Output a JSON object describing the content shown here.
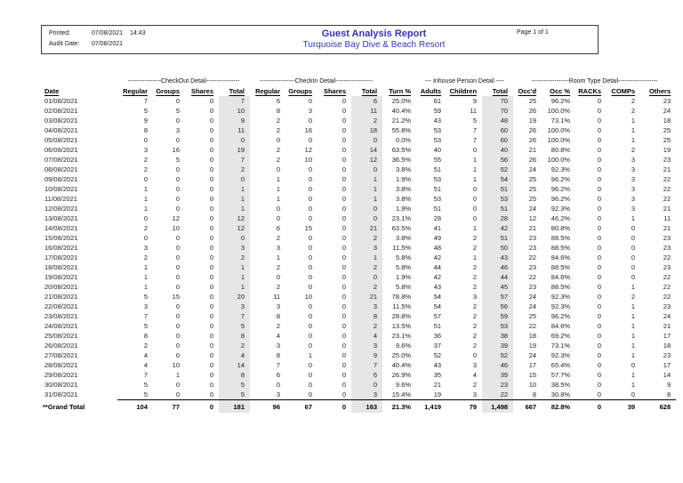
{
  "header": {
    "printed_label": "Printed:",
    "printed_date": "07/08/2021",
    "printed_time": "14:43",
    "audit_label": "Audit Date:",
    "audit_date": "07/08/2021",
    "title": "Guest Analysis Report",
    "subtitle": "Turquoise Bay Dive & Beach Resort",
    "page_info": "Page 1 of 1"
  },
  "colors": {
    "title_blue": "#3434b4",
    "total_column_bg": "#e6e6e6"
  },
  "table": {
    "group_headers": {
      "checkout": "----------------CheckOut Detail----------------",
      "checkin": "-----------------CheckIn Detail------------------",
      "inhouse": "--- Inhouse Person Detail ----",
      "roomtype": "------------------Room Type Detail-------------------"
    },
    "columns": [
      "Date",
      "Regular",
      "Groups",
      "Shares",
      "Total",
      "Regular",
      "Groups",
      "Shares",
      "Total",
      "Turn %",
      "Adults",
      "Children",
      "Total",
      "Occ'd",
      "Occ %",
      "RACKs",
      "COMPs",
      "Others"
    ],
    "total_column_indexes": [
      4,
      8,
      12
    ],
    "rows": [
      [
        "01/08/2021",
        "7",
        "0",
        "0",
        "7",
        "6",
        "0",
        "0",
        "6",
        "25.0%",
        "61",
        "9",
        "70",
        "25",
        "96.2%",
        "0",
        "2",
        "23"
      ],
      [
        "02/08/2021",
        "5",
        "5",
        "0",
        "10",
        "8",
        "3",
        "0",
        "11",
        "40.4%",
        "59",
        "11",
        "70",
        "26",
        "100.0%",
        "0",
        "2",
        "24"
      ],
      [
        "03/08/2021",
        "9",
        "0",
        "0",
        "9",
        "2",
        "0",
        "0",
        "2",
        "21.2%",
        "43",
        "5",
        "48",
        "19",
        "73.1%",
        "0",
        "1",
        "18"
      ],
      [
        "04/08/2021",
        "8",
        "3",
        "0",
        "11",
        "2",
        "16",
        "0",
        "18",
        "55.8%",
        "53",
        "7",
        "60",
        "26",
        "100.0%",
        "0",
        "1",
        "25"
      ],
      [
        "05/08/2021",
        "0",
        "0",
        "0",
        "0",
        "0",
        "0",
        "0",
        "0",
        "0.0%",
        "53",
        "7",
        "60",
        "26",
        "100.0%",
        "0",
        "1",
        "25"
      ],
      [
        "06/08/2021",
        "3",
        "16",
        "0",
        "19",
        "2",
        "12",
        "0",
        "14",
        "63.5%",
        "40",
        "0",
        "40",
        "21",
        "80.8%",
        "0",
        "2",
        "19"
      ],
      [
        "07/08/2021",
        "2",
        "5",
        "0",
        "7",
        "2",
        "10",
        "0",
        "12",
        "36.5%",
        "55",
        "1",
        "56",
        "26",
        "100.0%",
        "0",
        "3",
        "23"
      ],
      [
        "08/08/2021",
        "2",
        "0",
        "0",
        "2",
        "0",
        "0",
        "0",
        "0",
        "3.8%",
        "51",
        "1",
        "52",
        "24",
        "92.3%",
        "0",
        "3",
        "21"
      ],
      [
        "09/08/2021",
        "0",
        "0",
        "0",
        "0",
        "1",
        "0",
        "0",
        "1",
        "1.9%",
        "53",
        "1",
        "54",
        "25",
        "96.2%",
        "0",
        "3",
        "22"
      ],
      [
        "10/08/2021",
        "1",
        "0",
        "0",
        "1",
        "1",
        "0",
        "0",
        "1",
        "3.8%",
        "51",
        "0",
        "51",
        "25",
        "96.2%",
        "0",
        "3",
        "22"
      ],
      [
        "11/08/2021",
        "1",
        "0",
        "0",
        "1",
        "1",
        "0",
        "0",
        "1",
        "3.8%",
        "53",
        "0",
        "53",
        "25",
        "96.2%",
        "0",
        "3",
        "22"
      ],
      [
        "12/08/2021",
        "1",
        "0",
        "0",
        "1",
        "0",
        "0",
        "0",
        "0",
        "1.9%",
        "51",
        "0",
        "51",
        "24",
        "92.3%",
        "0",
        "3",
        "21"
      ],
      [
        "13/08/2021",
        "0",
        "12",
        "0",
        "12",
        "0",
        "0",
        "0",
        "0",
        "23.1%",
        "28",
        "0",
        "28",
        "12",
        "46.2%",
        "0",
        "1",
        "11"
      ],
      [
        "14/08/2021",
        "2",
        "10",
        "0",
        "12",
        "6",
        "15",
        "0",
        "21",
        "63.5%",
        "41",
        "1",
        "42",
        "21",
        "80.8%",
        "0",
        "0",
        "21"
      ],
      [
        "15/08/2021",
        "0",
        "0",
        "0",
        "0",
        "2",
        "0",
        "0",
        "2",
        "3.8%",
        "49",
        "2",
        "51",
        "23",
        "88.5%",
        "0",
        "0",
        "23"
      ],
      [
        "16/08/2021",
        "3",
        "0",
        "0",
        "3",
        "3",
        "0",
        "0",
        "3",
        "11.5%",
        "48",
        "2",
        "50",
        "23",
        "88.5%",
        "0",
        "0",
        "23"
      ],
      [
        "17/08/2021",
        "2",
        "0",
        "0",
        "2",
        "1",
        "0",
        "0",
        "1",
        "5.8%",
        "42",
        "1",
        "43",
        "22",
        "84.6%",
        "0",
        "0",
        "22"
      ],
      [
        "18/08/2021",
        "1",
        "0",
        "0",
        "1",
        "2",
        "0",
        "0",
        "2",
        "5.8%",
        "44",
        "2",
        "46",
        "23",
        "88.5%",
        "0",
        "0",
        "23"
      ],
      [
        "19/08/2021",
        "1",
        "0",
        "0",
        "1",
        "0",
        "0",
        "0",
        "0",
        "1.9%",
        "42",
        "2",
        "44",
        "22",
        "84.6%",
        "0",
        "0",
        "22"
      ],
      [
        "20/08/2021",
        "1",
        "0",
        "0",
        "1",
        "2",
        "0",
        "0",
        "2",
        "5.8%",
        "43",
        "2",
        "45",
        "23",
        "88.5%",
        "0",
        "1",
        "22"
      ],
      [
        "21/08/2021",
        "5",
        "15",
        "0",
        "20",
        "11",
        "10",
        "0",
        "21",
        "78.8%",
        "54",
        "3",
        "57",
        "24",
        "92.3%",
        "0",
        "2",
        "22"
      ],
      [
        "22/08/2021",
        "3",
        "0",
        "0",
        "3",
        "3",
        "0",
        "0",
        "3",
        "11.5%",
        "54",
        "2",
        "56",
        "24",
        "92.3%",
        "0",
        "1",
        "23"
      ],
      [
        "23/08/2021",
        "7",
        "0",
        "0",
        "7",
        "8",
        "0",
        "0",
        "8",
        "28.8%",
        "57",
        "2",
        "59",
        "25",
        "96.2%",
        "0",
        "1",
        "24"
      ],
      [
        "24/08/2021",
        "5",
        "0",
        "0",
        "5",
        "2",
        "0",
        "0",
        "2",
        "13.5%",
        "51",
        "2",
        "53",
        "22",
        "84.6%",
        "0",
        "1",
        "21"
      ],
      [
        "25/08/2021",
        "8",
        "0",
        "0",
        "8",
        "4",
        "0",
        "0",
        "4",
        "23.1%",
        "36",
        "2",
        "38",
        "18",
        "69.2%",
        "0",
        "1",
        "17"
      ],
      [
        "26/08/2021",
        "2",
        "0",
        "0",
        "2",
        "3",
        "0",
        "0",
        "3",
        "9.6%",
        "37",
        "2",
        "39",
        "19",
        "73.1%",
        "0",
        "1",
        "18"
      ],
      [
        "27/08/2021",
        "4",
        "0",
        "0",
        "4",
        "8",
        "1",
        "0",
        "9",
        "25.0%",
        "52",
        "0",
        "52",
        "24",
        "92.3%",
        "0",
        "1",
        "23"
      ],
      [
        "28/08/2021",
        "4",
        "10",
        "0",
        "14",
        "7",
        "0",
        "0",
        "7",
        "40.4%",
        "43",
        "3",
        "46",
        "17",
        "65.4%",
        "0",
        "0",
        "17"
      ],
      [
        "29/08/2021",
        "7",
        "1",
        "0",
        "8",
        "6",
        "0",
        "0",
        "6",
        "26.9%",
        "35",
        "4",
        "39",
        "15",
        "57.7%",
        "0",
        "1",
        "14"
      ],
      [
        "30/08/2021",
        "5",
        "0",
        "0",
        "5",
        "0",
        "0",
        "0",
        "0",
        "9.6%",
        "21",
        "2",
        "23",
        "10",
        "38.5%",
        "0",
        "1",
        "9"
      ],
      [
        "31/08/2021",
        "5",
        "0",
        "0",
        "5",
        "3",
        "0",
        "0",
        "3",
        "15.4%",
        "19",
        "3",
        "22",
        "8",
        "30.8%",
        "0",
        "0",
        "8"
      ]
    ],
    "grand_total": [
      "**Grand Total",
      "104",
      "77",
      "0",
      "181",
      "96",
      "67",
      "0",
      "163",
      "21.3%",
      "1,419",
      "79",
      "1,498",
      "667",
      "82.8%",
      "0",
      "39",
      "628"
    ]
  }
}
